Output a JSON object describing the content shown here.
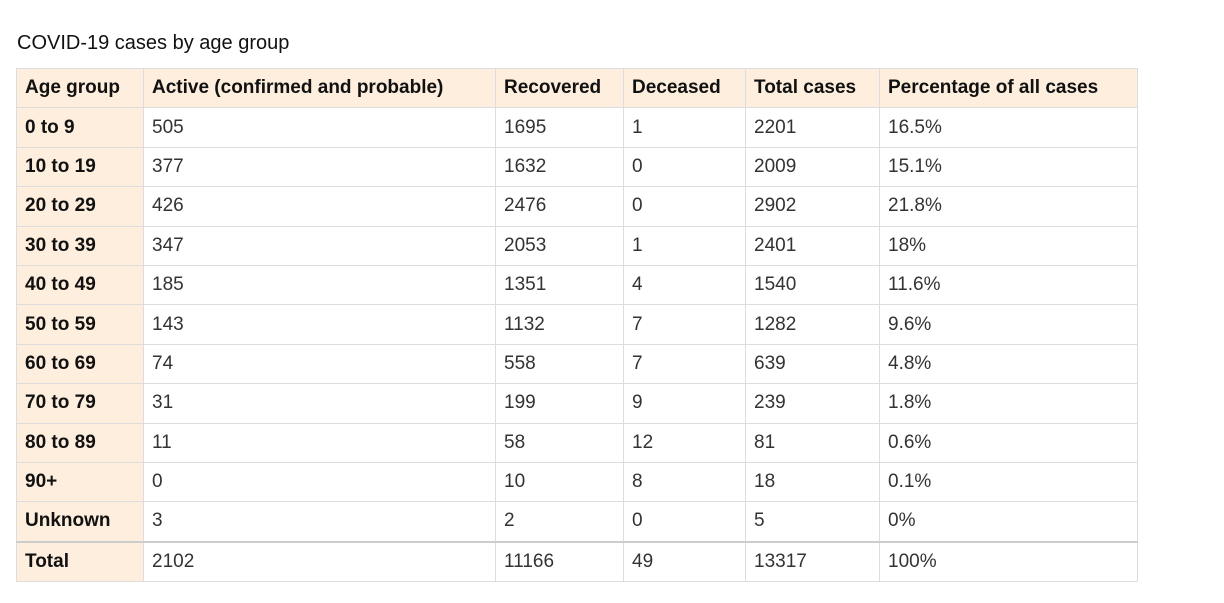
{
  "title": "COVID-19 cases by age group",
  "table": {
    "header": [
      "Age group",
      "Active (confirmed and probable)",
      "Recovered",
      "Deceased",
      "Total cases",
      "Percentage of all cases"
    ],
    "rows": [
      [
        "0 to 9",
        "505",
        "1695",
        "1",
        "2201",
        "16.5%"
      ],
      [
        "10 to 19",
        "377",
        "1632",
        "0",
        "2009",
        "15.1%"
      ],
      [
        "20 to 29",
        "426",
        "2476",
        "0",
        "2902",
        "21.8%"
      ],
      [
        "30 to 39",
        "347",
        "2053",
        "1",
        "2401",
        "18%"
      ],
      [
        "40 to 49",
        "185",
        "1351",
        "4",
        "1540",
        "11.6%"
      ],
      [
        "50 to 59",
        "143",
        "1132",
        "7",
        "1282",
        "9.6%"
      ],
      [
        "60 to 69",
        "74",
        "558",
        "7",
        "639",
        "4.8%"
      ],
      [
        "70 to 79",
        "31",
        "199",
        "9",
        "239",
        "1.8%"
      ],
      [
        "80 to 89",
        "11",
        "58",
        "12",
        "81",
        "0.6%"
      ],
      [
        "90+",
        "0",
        "10",
        "8",
        "18",
        "0.1%"
      ],
      [
        "Unknown",
        "3",
        "2",
        "0",
        "5",
        "0%"
      ],
      [
        "Total",
        "2102",
        "11166",
        "49",
        "13317",
        "100%"
      ]
    ]
  }
}
